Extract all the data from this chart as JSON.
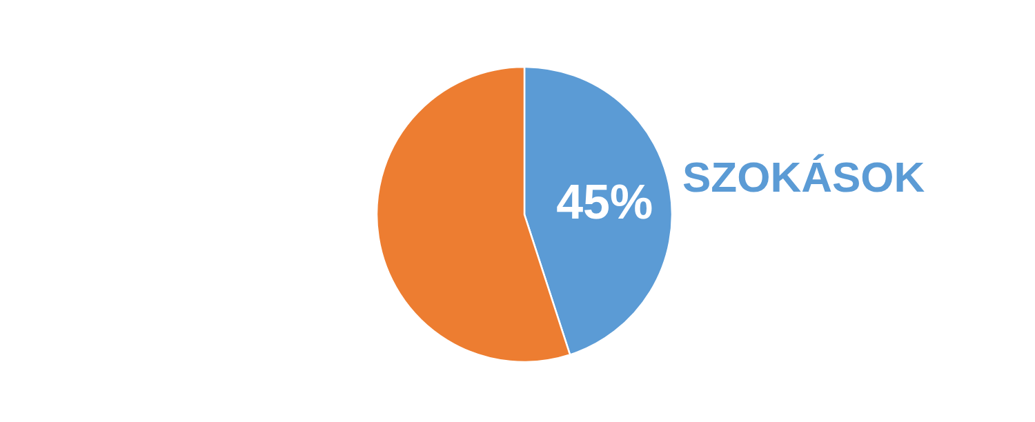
{
  "chart_data": {
    "type": "pie",
    "categories": [
      "SZOKÁSOK",
      null
    ],
    "values": [
      45,
      55
    ],
    "colors": [
      "#5b9bd5",
      "#ed7d31"
    ],
    "value_labels": [
      "45%",
      null
    ]
  }
}
